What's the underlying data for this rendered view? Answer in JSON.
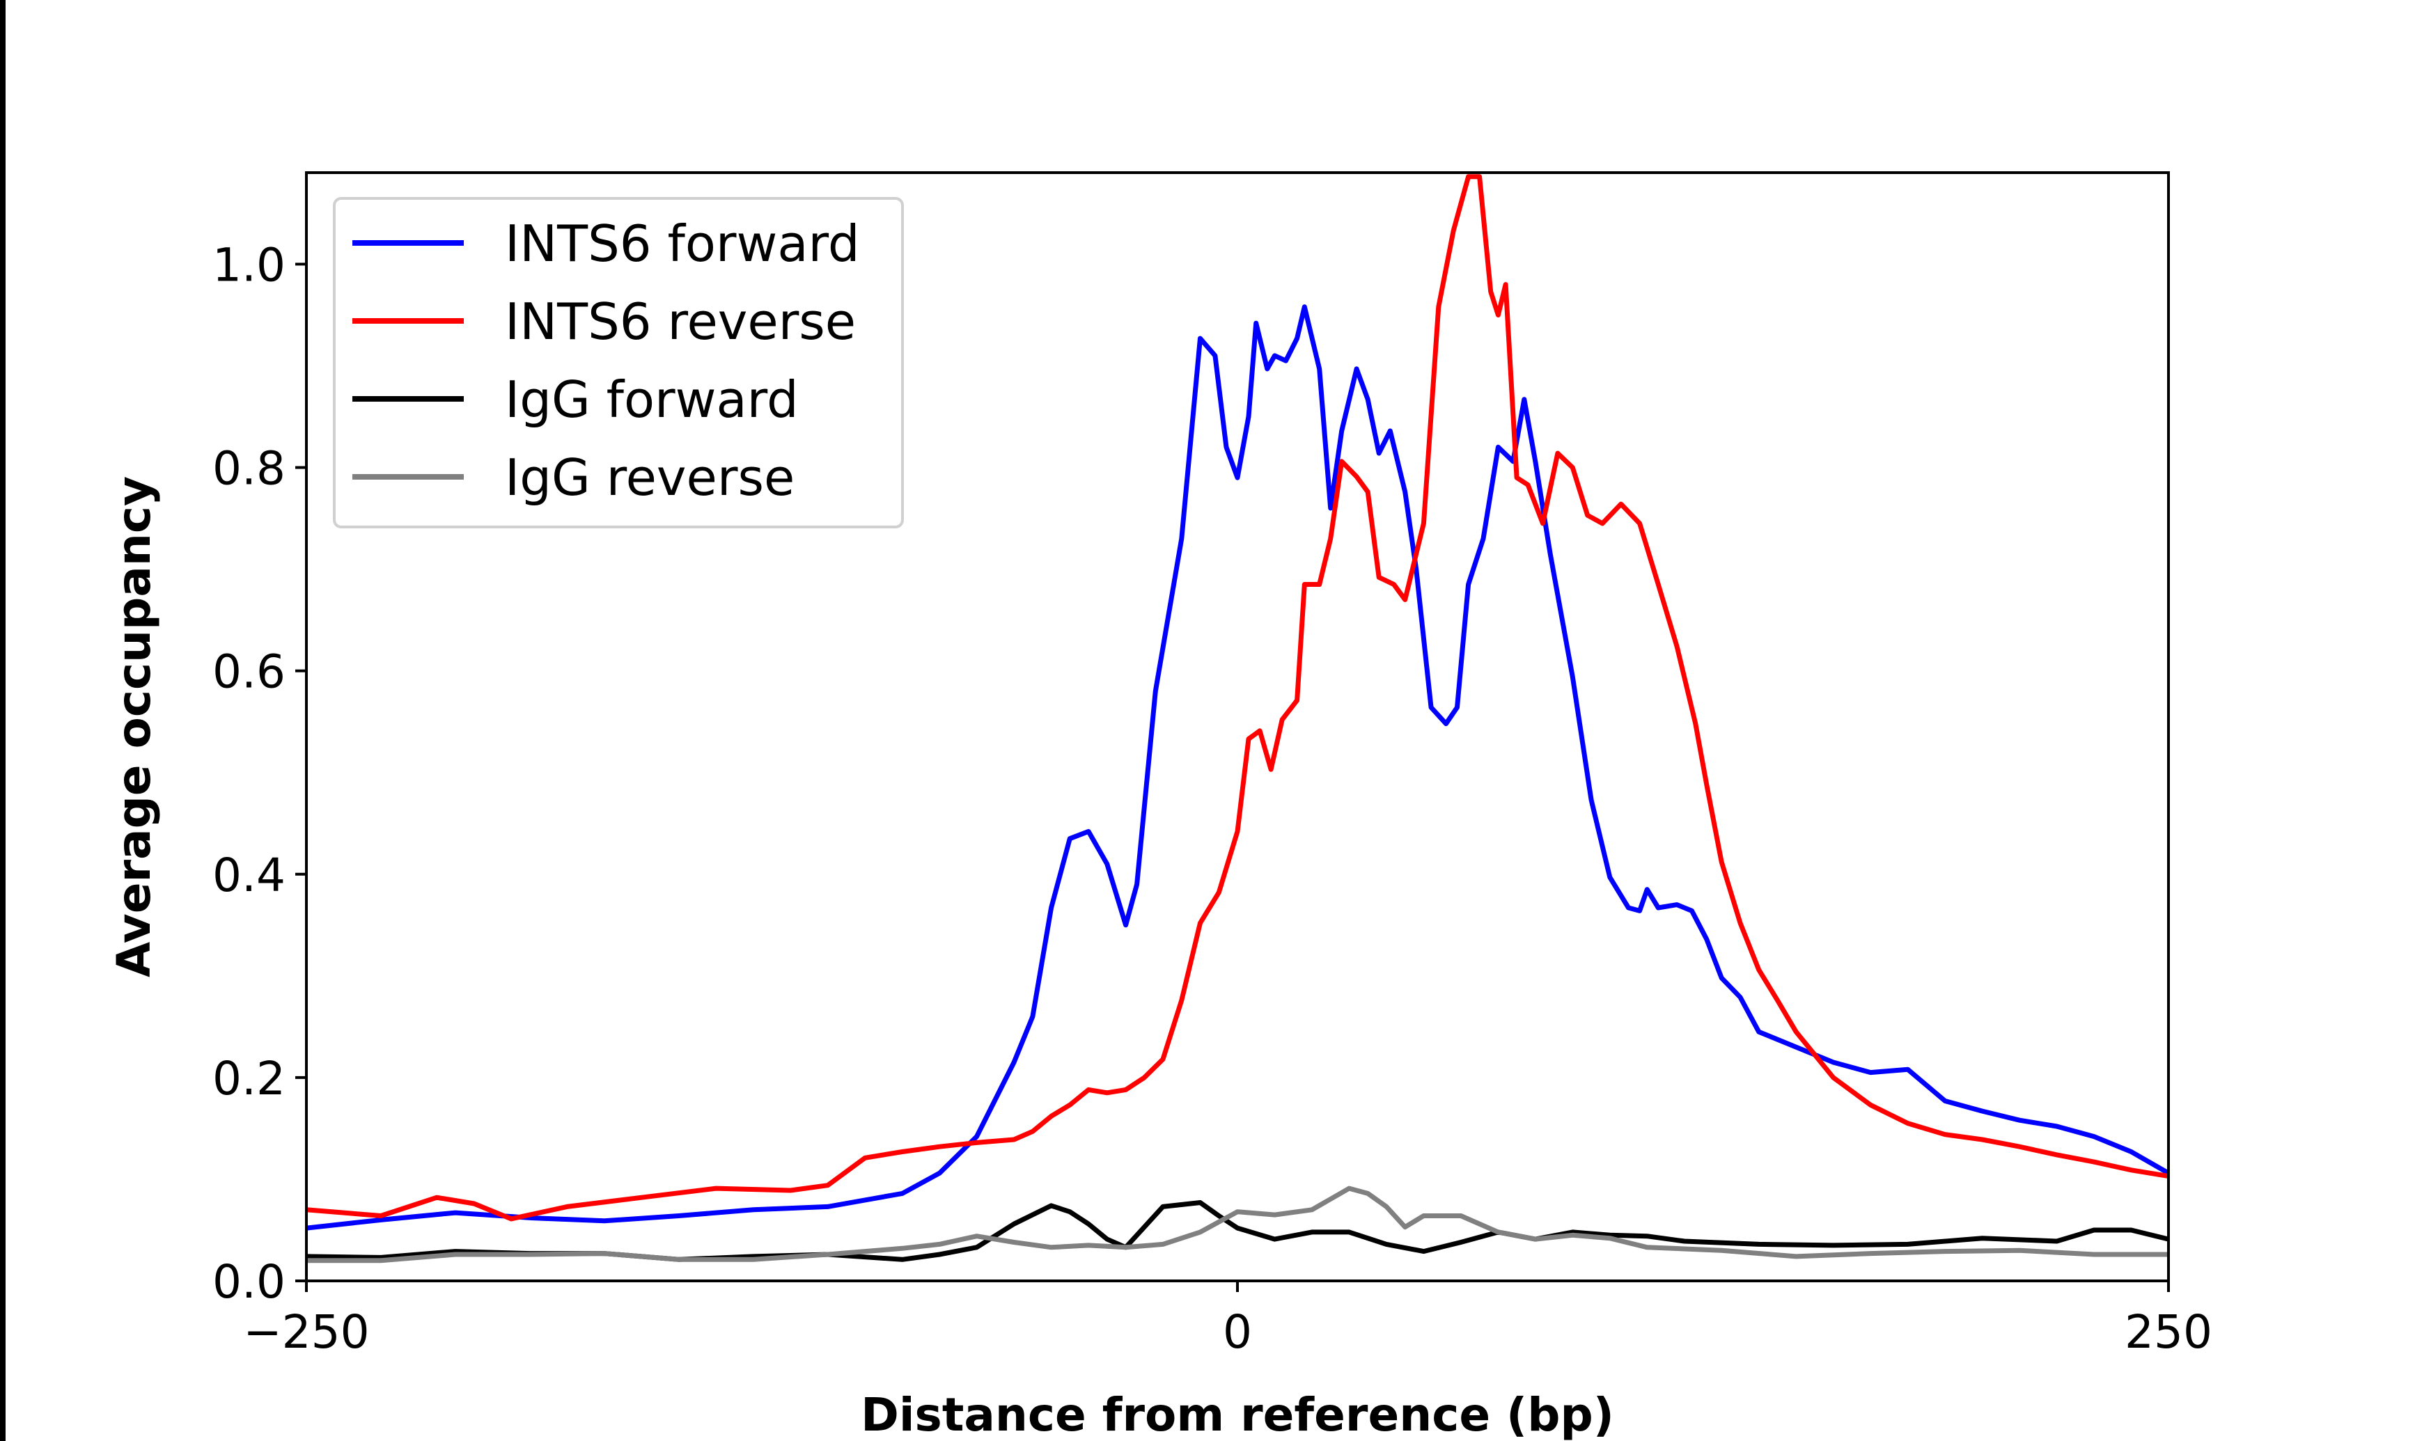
{
  "chart_data": {
    "type": "line",
    "title": "",
    "xlabel": "Distance from reference (bp)",
    "ylabel": "Average occupancy",
    "xlim": [
      -250,
      250
    ],
    "ylim": [
      0,
      1.09
    ],
    "xticks": [
      {
        "value": -250,
        "label": "−250"
      },
      {
        "value": 0,
        "label": "0"
      },
      {
        "value": 250,
        "label": "250"
      }
    ],
    "yticks": [
      {
        "value": 0,
        "label": "0.0"
      },
      {
        "value": 0.2,
        "label": "0.2"
      },
      {
        "value": 0.4,
        "label": "0.4"
      },
      {
        "value": 0.6,
        "label": "0.6"
      },
      {
        "value": 0.8,
        "label": "0.8"
      },
      {
        "value": 1.0,
        "label": "1.0"
      }
    ],
    "grid": false,
    "legend_position": "top-left",
    "series": [
      {
        "name": "INTS6 forward",
        "color": "#0000ff",
        "x": [
          -250,
          -230,
          -210,
          -190,
          -170,
          -150,
          -130,
          -110,
          -90,
          -80,
          -70,
          -60,
          -55,
          -50,
          -45,
          -40,
          -35,
          -30,
          -27,
          -22,
          -15,
          -10,
          -6,
          -3,
          0,
          3,
          5,
          8,
          10,
          13,
          16,
          18,
          22,
          25,
          28,
          32,
          35,
          38,
          41,
          45,
          48,
          52,
          56,
          59,
          62,
          66,
          70,
          74,
          77,
          80,
          84,
          90,
          95,
          100,
          105,
          108,
          110,
          113,
          118,
          122,
          126,
          130,
          135,
          140,
          150,
          160,
          170,
          180,
          190,
          200,
          210,
          220,
          230,
          240,
          250
        ],
        "y": [
          0.052,
          0.06,
          0.067,
          0.062,
          0.059,
          0.064,
          0.07,
          0.073,
          0.086,
          0.106,
          0.142,
          0.215,
          0.26,
          0.367,
          0.435,
          0.442,
          0.41,
          0.35,
          0.39,
          0.58,
          0.73,
          0.927,
          0.91,
          0.82,
          0.79,
          0.85,
          0.942,
          0.897,
          0.91,
          0.905,
          0.927,
          0.958,
          0.897,
          0.76,
          0.836,
          0.897,
          0.867,
          0.814,
          0.836,
          0.776,
          0.7,
          0.564,
          0.548,
          0.564,
          0.685,
          0.73,
          0.82,
          0.806,
          0.867,
          0.806,
          0.715,
          0.594,
          0.473,
          0.397,
          0.367,
          0.364,
          0.385,
          0.367,
          0.37,
          0.364,
          0.336,
          0.298,
          0.279,
          0.245,
          0.23,
          0.215,
          0.205,
          0.208,
          0.177,
          0.167,
          0.158,
          0.152,
          0.142,
          0.127,
          0.106
        ]
      },
      {
        "name": "INTS6 reverse",
        "color": "#ff0000",
        "x": [
          -250,
          -230,
          -215,
          -205,
          -195,
          -180,
          -160,
          -140,
          -120,
          -110,
          -100,
          -90,
          -80,
          -70,
          -60,
          -55,
          -50,
          -45,
          -40,
          -35,
          -30,
          -25,
          -20,
          -15,
          -10,
          -5,
          0,
          3,
          6,
          9,
          12,
          16,
          18,
          22,
          25,
          28,
          32,
          35,
          38,
          42,
          45,
          50,
          54,
          58,
          62,
          65,
          68,
          70,
          72,
          75,
          78,
          82,
          86,
          90,
          94,
          98,
          103,
          108,
          113,
          118,
          123,
          126,
          130,
          135,
          140,
          145,
          150,
          160,
          170,
          180,
          190,
          200,
          210,
          220,
          230,
          240,
          250
        ],
        "y": [
          0.07,
          0.064,
          0.082,
          0.076,
          0.061,
          0.073,
          0.082,
          0.091,
          0.089,
          0.094,
          0.121,
          0.127,
          0.132,
          0.136,
          0.139,
          0.147,
          0.162,
          0.173,
          0.188,
          0.185,
          0.188,
          0.2,
          0.218,
          0.276,
          0.352,
          0.382,
          0.442,
          0.533,
          0.541,
          0.503,
          0.552,
          0.571,
          0.685,
          0.685,
          0.73,
          0.806,
          0.791,
          0.776,
          0.692,
          0.685,
          0.67,
          0.745,
          0.958,
          1.033,
          1.086,
          1.086,
          0.973,
          0.95,
          0.98,
          0.79,
          0.783,
          0.745,
          0.814,
          0.8,
          0.753,
          0.745,
          0.764,
          0.745,
          0.685,
          0.624,
          0.548,
          0.488,
          0.412,
          0.352,
          0.306,
          0.276,
          0.245,
          0.2,
          0.173,
          0.155,
          0.144,
          0.139,
          0.132,
          0.124,
          0.117,
          0.109,
          0.103
        ]
      },
      {
        "name": "IgG forward",
        "color": "#000000",
        "x": [
          -250,
          -230,
          -210,
          -190,
          -170,
          -150,
          -130,
          -110,
          -90,
          -80,
          -70,
          -60,
          -50,
          -45,
          -40,
          -35,
          -30,
          -25,
          -20,
          -10,
          -5,
          0,
          10,
          20,
          30,
          40,
          50,
          60,
          70,
          80,
          90,
          100,
          110,
          120,
          140,
          160,
          180,
          200,
          220,
          230,
          240,
          250
        ],
        "y": [
          0.024,
          0.023,
          0.029,
          0.027,
          0.027,
          0.021,
          0.024,
          0.026,
          0.021,
          0.026,
          0.033,
          0.056,
          0.074,
          0.068,
          0.056,
          0.041,
          0.033,
          0.053,
          0.073,
          0.077,
          0.064,
          0.052,
          0.041,
          0.048,
          0.048,
          0.036,
          0.029,
          0.038,
          0.048,
          0.041,
          0.048,
          0.045,
          0.044,
          0.039,
          0.036,
          0.035,
          0.036,
          0.042,
          0.039,
          0.05,
          0.05,
          0.041
        ]
      },
      {
        "name": "IgG reverse",
        "color": "#808080",
        "x": [
          -250,
          -230,
          -210,
          -190,
          -170,
          -150,
          -130,
          -110,
          -90,
          -80,
          -70,
          -60,
          -50,
          -40,
          -30,
          -20,
          -10,
          0,
          10,
          20,
          30,
          35,
          40,
          45,
          50,
          60,
          70,
          80,
          90,
          100,
          110,
          130,
          150,
          170,
          190,
          210,
          230,
          250
        ],
        "y": [
          0.02,
          0.02,
          0.026,
          0.026,
          0.027,
          0.021,
          0.021,
          0.026,
          0.032,
          0.036,
          0.044,
          0.038,
          0.033,
          0.035,
          0.033,
          0.036,
          0.048,
          0.068,
          0.065,
          0.07,
          0.091,
          0.086,
          0.073,
          0.053,
          0.064,
          0.064,
          0.048,
          0.041,
          0.045,
          0.042,
          0.033,
          0.03,
          0.024,
          0.027,
          0.029,
          0.03,
          0.026,
          0.026
        ]
      }
    ]
  }
}
